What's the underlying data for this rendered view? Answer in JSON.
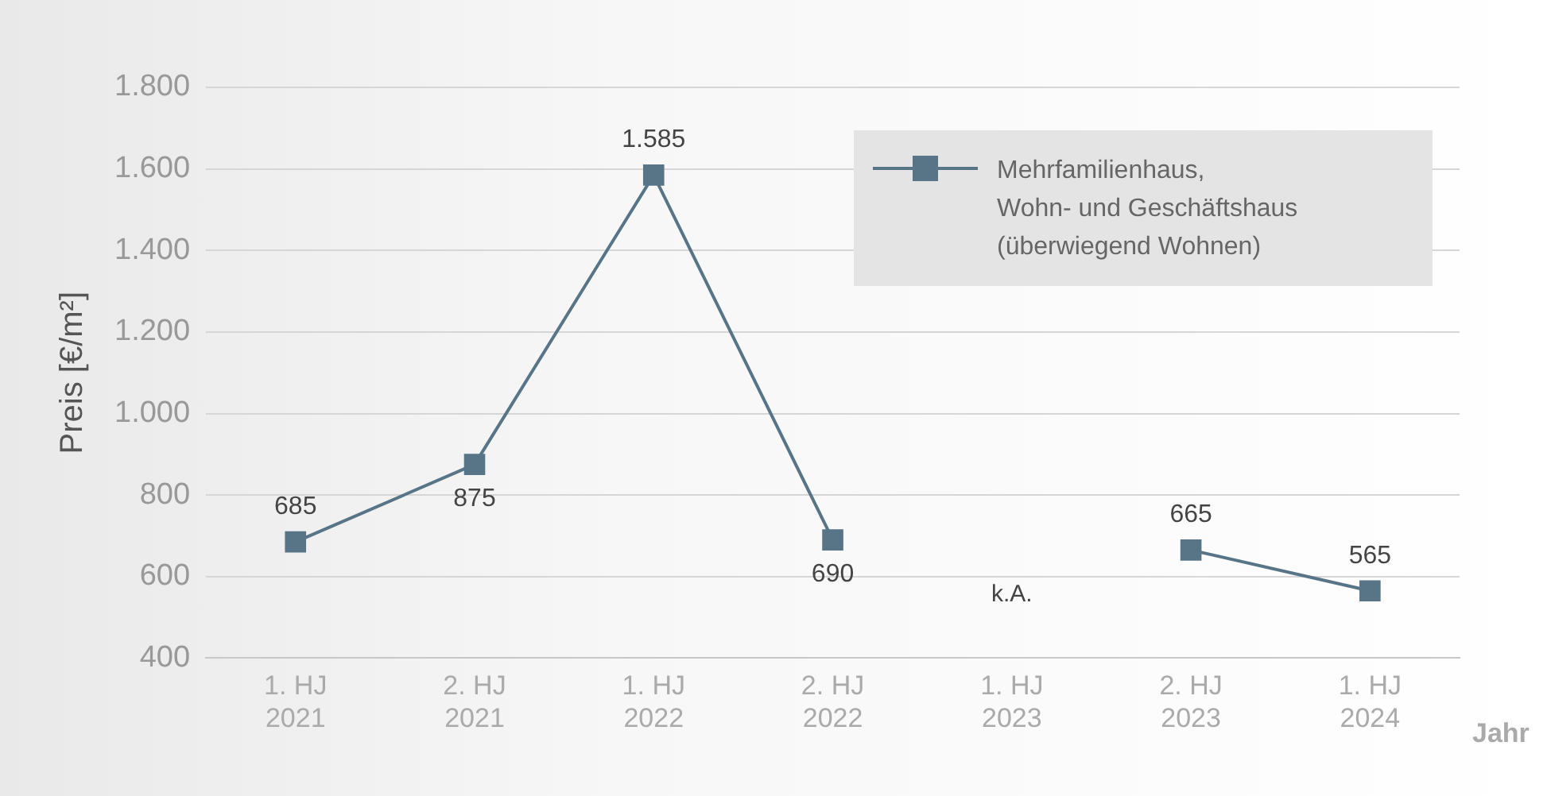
{
  "chart_data": {
    "type": "line",
    "ylabel": "Preis [€/m²]",
    "xlabel": "Jahr",
    "categories": [
      "1. HJ\n2021",
      "2. HJ\n2021",
      "1. HJ\n2022",
      "2. HJ\n2022",
      "1. HJ\n2023",
      "2. HJ\n2023",
      "1. HJ\n2024"
    ],
    "series": [
      {
        "name": "Mehrfamilienhaus,\nWohn- und Geschäftshaus\n(überwiegend Wohnen)",
        "color": "#587588",
        "values": [
          685,
          875,
          1585,
          690,
          null,
          665,
          565
        ]
      }
    ],
    "ylim": [
      400,
      1800
    ],
    "yticks": [
      {
        "value": 400,
        "label": "400"
      },
      {
        "value": 600,
        "label": "600"
      },
      {
        "value": 800,
        "label": "800"
      },
      {
        "value": 1000,
        "label": "1.000"
      },
      {
        "value": 1200,
        "label": "1.200"
      },
      {
        "value": 1400,
        "label": "1.400"
      },
      {
        "value": 1600,
        "label": "1.600"
      },
      {
        "value": 1800,
        "label": "1.800"
      }
    ],
    "value_labels": [
      "685",
      "875",
      "1.585",
      "690",
      null,
      "665",
      "565"
    ],
    "annotations": [
      "k.A."
    ],
    "grid": "y",
    "legend": "top right",
    "marker": "square",
    "line_style": "solid"
  }
}
